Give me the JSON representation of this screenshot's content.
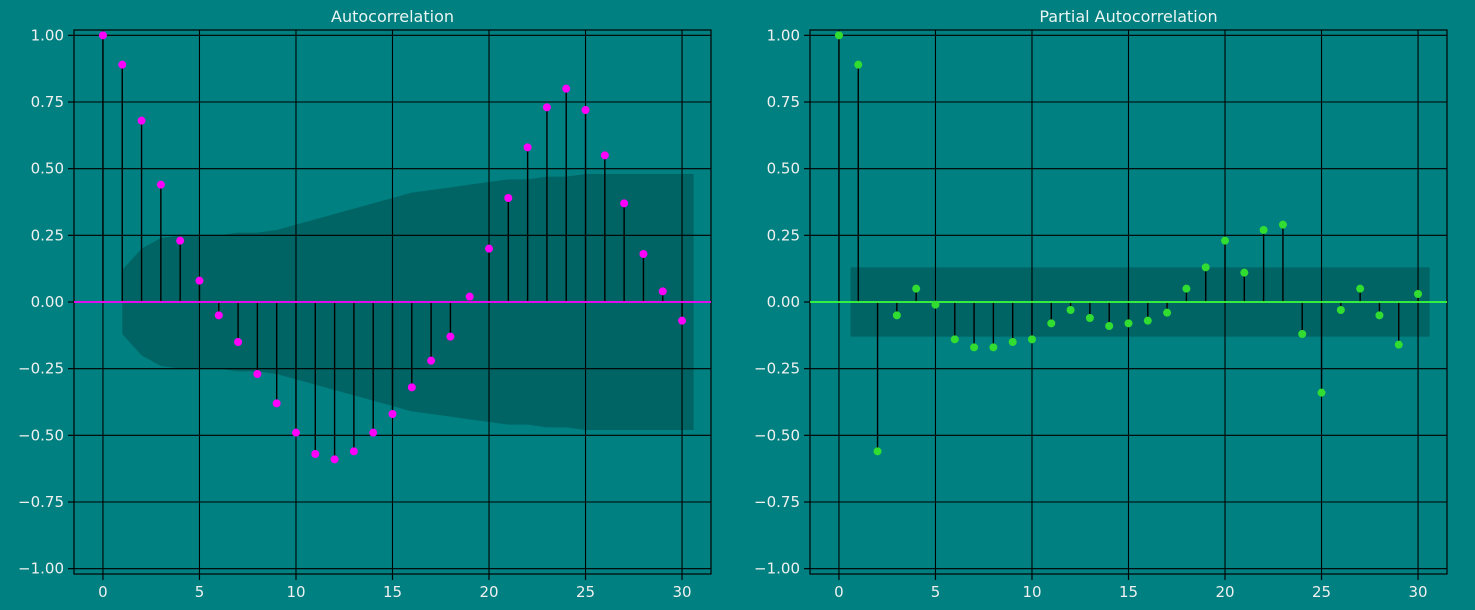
{
  "figure": {
    "background_color": "#008080",
    "text_color": "#f0f0f0",
    "grid_color": "#000000",
    "stem_color": "#000000",
    "band_color": "rgba(0,0,0,0.22)"
  },
  "chart_data": [
    {
      "type": "stem",
      "title": "Autocorrelation",
      "x": [
        0,
        1,
        2,
        3,
        4,
        5,
        6,
        7,
        8,
        9,
        10,
        11,
        12,
        13,
        14,
        15,
        16,
        17,
        18,
        19,
        20,
        21,
        22,
        23,
        24,
        25,
        26,
        27,
        28,
        29,
        30
      ],
      "values": [
        1.0,
        0.89,
        0.68,
        0.44,
        0.23,
        0.08,
        -0.05,
        -0.15,
        -0.27,
        -0.38,
        -0.49,
        -0.57,
        -0.59,
        -0.56,
        -0.49,
        -0.42,
        -0.32,
        -0.22,
        -0.13,
        0.02,
        0.2,
        0.39,
        0.58,
        0.73,
        0.8,
        0.72,
        0.55,
        0.37,
        0.18,
        0.04,
        -0.07
      ],
      "xticks": [
        0,
        5,
        10,
        15,
        20,
        25,
        30
      ],
      "yticks": [
        1.0,
        0.75,
        0.5,
        0.25,
        0.0,
        -0.25,
        -0.5,
        -0.75,
        -1.0
      ],
      "xlim": [
        -1.5,
        31.5
      ],
      "ylim": [
        -1.02,
        1.02
      ],
      "marker_color": "#ff00ff",
      "zero_line_color": "#ff00ff",
      "band": {
        "x": [
          1,
          2,
          3,
          4,
          5,
          6,
          7,
          8,
          9,
          10,
          11,
          12,
          13,
          14,
          15,
          16,
          17,
          18,
          19,
          20,
          21,
          22,
          23,
          24,
          25,
          26,
          27,
          28,
          29,
          30,
          30.6
        ],
        "hi": [
          0.12,
          0.2,
          0.24,
          0.25,
          0.25,
          0.25,
          0.26,
          0.26,
          0.27,
          0.29,
          0.31,
          0.33,
          0.35,
          0.37,
          0.39,
          0.41,
          0.42,
          0.43,
          0.44,
          0.45,
          0.46,
          0.46,
          0.47,
          0.47,
          0.48,
          0.48,
          0.48,
          0.48,
          0.48,
          0.48,
          0.48
        ]
      }
    },
    {
      "type": "stem",
      "title": "Partial Autocorrelation",
      "x": [
        0,
        1,
        2,
        3,
        4,
        5,
        6,
        7,
        8,
        9,
        10,
        11,
        12,
        13,
        14,
        15,
        16,
        17,
        18,
        19,
        20,
        21,
        22,
        23,
        24,
        25,
        26,
        27,
        28,
        29,
        30
      ],
      "values": [
        1.0,
        0.89,
        -0.56,
        -0.05,
        0.05,
        -0.01,
        -0.14,
        -0.17,
        -0.17,
        -0.15,
        -0.14,
        -0.08,
        -0.03,
        -0.06,
        -0.09,
        -0.08,
        -0.07,
        -0.04,
        0.05,
        0.13,
        0.23,
        0.11,
        0.27,
        0.29,
        -0.12,
        -0.34,
        -0.03,
        0.05,
        -0.05,
        -0.16,
        0.03
      ],
      "xticks": [
        0,
        5,
        10,
        15,
        20,
        25,
        30
      ],
      "yticks": [
        1.0,
        0.75,
        0.5,
        0.25,
        0.0,
        -0.25,
        -0.5,
        -0.75,
        -1.0
      ],
      "xlim": [
        -1.5,
        31.5
      ],
      "ylim": [
        -1.02,
        1.02
      ],
      "marker_color": "#30dd30",
      "zero_line_color": "#3bff3b",
      "band": {
        "x": [
          0.6,
          30.6
        ],
        "hi": [
          0.13,
          0.13
        ]
      }
    }
  ]
}
